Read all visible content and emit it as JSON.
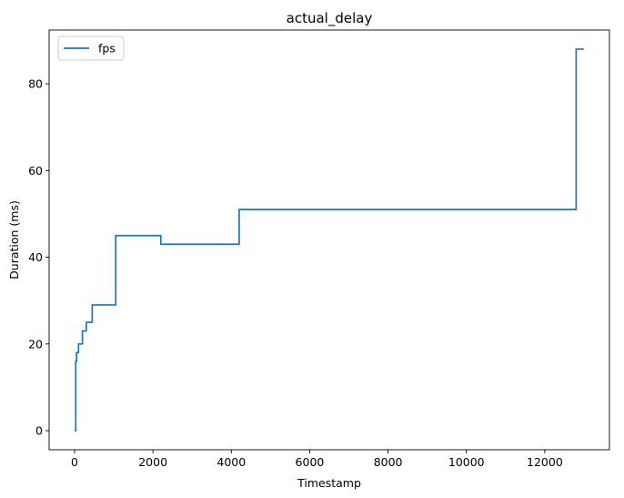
{
  "chart_data": {
    "type": "line",
    "title": "actual_delay",
    "xlabel": "Timestamp",
    "ylabel": "Duration (ms)",
    "xlim": [
      -650,
      13650
    ],
    "ylim": [
      -4.4,
      92.4
    ],
    "xticks": [
      0,
      2000,
      4000,
      6000,
      8000,
      10000,
      12000
    ],
    "yticks": [
      0,
      20,
      40,
      60,
      80
    ],
    "grid": false,
    "legend_position": "top-left",
    "step": true,
    "series": [
      {
        "name": "fps",
        "color": "#1f77b4",
        "x": [
          0,
          30,
          50,
          100,
          200,
          300,
          450,
          1050,
          2200,
          4200,
          12800,
          13000
        ],
        "y": [
          0,
          16,
          18,
          20,
          23,
          25,
          29,
          45,
          43,
          51,
          88,
          88
        ]
      }
    ]
  }
}
